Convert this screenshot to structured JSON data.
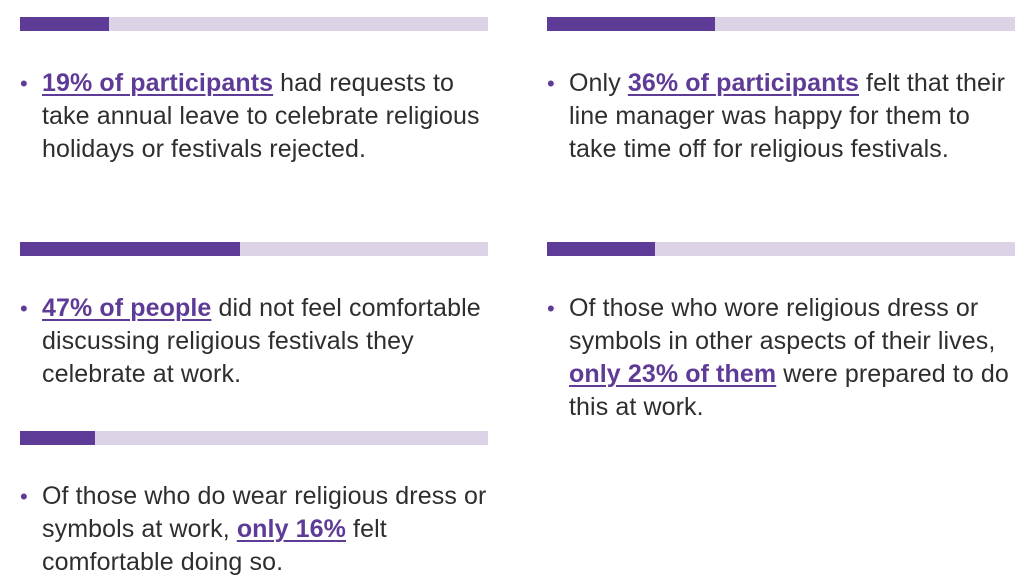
{
  "colors": {
    "accent": "#5e3b96",
    "track": "#ddd3e6",
    "text": "#2e2e2e"
  },
  "bullet": "•",
  "stats": [
    {
      "percent": 19,
      "before": "",
      "highlight": "19% of participants",
      "after": " had requests to take annual leave to celebrate religious holidays or festivals rejected."
    },
    {
      "percent": 36,
      "before": "Only ",
      "highlight": "36% of participants",
      "after": " felt that their line manager was happy for them to take time off for religious festivals."
    },
    {
      "percent": 47,
      "before": "",
      "highlight": "47% of people",
      "after": " did not feel comfortable discussing religious festivals they celebrate at work."
    },
    {
      "percent": 23,
      "before": "Of those who wore religious dress or symbols in other aspects of their lives, ",
      "highlight": "only 23% of them",
      "after": " were prepared to do this at work."
    },
    {
      "percent": 16,
      "before": "Of those who do wear religious dress or symbols at work, ",
      "highlight": "only 16%",
      "after": " felt comfortable doing so."
    }
  ]
}
